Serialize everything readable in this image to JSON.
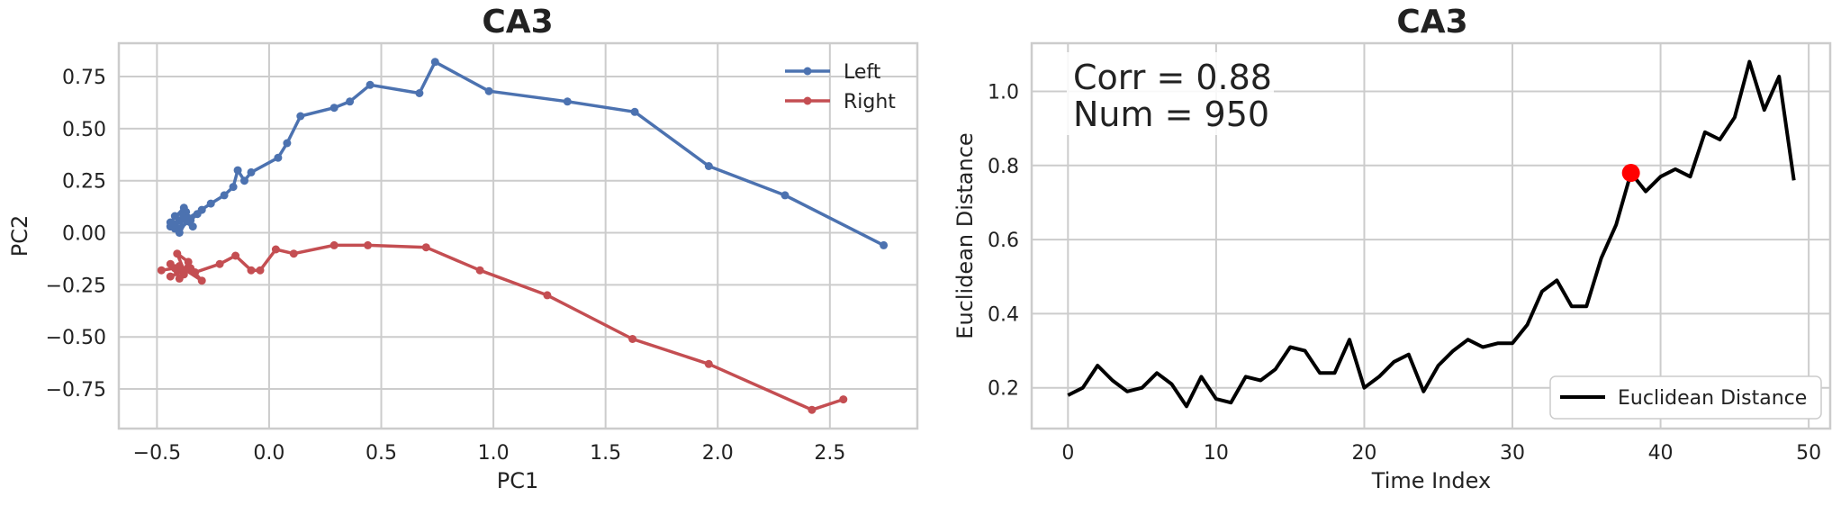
{
  "chart_data": [
    {
      "type": "line",
      "title": "CA3",
      "xlabel": "PC1",
      "ylabel": "PC2",
      "xlim": [
        -0.67,
        2.89
      ],
      "ylim": [
        -0.94,
        0.91
      ],
      "xticks": [
        -0.5,
        0.0,
        0.5,
        1.0,
        1.5,
        2.0,
        2.5
      ],
      "xtick_labels": [
        "−0.5",
        "0.0",
        "0.5",
        "1.0",
        "1.5",
        "2.0",
        "2.5"
      ],
      "yticks": [
        -0.75,
        -0.5,
        -0.25,
        0.0,
        0.25,
        0.5,
        0.75
      ],
      "ytick_labels": [
        "−0.75",
        "−0.50",
        "−0.25",
        "0.00",
        "0.25",
        "0.50",
        "0.75"
      ],
      "grid": true,
      "legend": "top-right",
      "series": [
        {
          "name": "Left",
          "color": "#4c72b0",
          "marker": "circle",
          "x": [
            -0.42,
            -0.4,
            -0.44,
            -0.38,
            -0.42,
            -0.36,
            -0.4,
            -0.44,
            -0.38,
            -0.34,
            -0.42,
            -0.37,
            -0.4,
            -0.35,
            -0.32,
            -0.3,
            -0.36,
            -0.26,
            -0.2,
            -0.16,
            -0.14,
            -0.11,
            -0.08,
            0.04,
            0.08,
            0.14,
            0.29,
            0.36,
            0.45,
            0.67,
            0.74,
            0.98,
            1.33,
            1.63,
            1.96,
            2.3,
            2.74
          ],
          "y": [
            0.02,
            0.06,
            0.03,
            0.08,
            0.04,
            0.07,
            0.0,
            0.05,
            0.12,
            0.03,
            0.08,
            0.1,
            0.02,
            0.06,
            0.09,
            0.11,
            0.07,
            0.14,
            0.18,
            0.22,
            0.3,
            0.25,
            0.29,
            0.36,
            0.43,
            0.56,
            0.6,
            0.63,
            0.71,
            0.67,
            0.82,
            0.68,
            0.63,
            0.58,
            0.32,
            0.18,
            -0.06
          ]
        },
        {
          "name": "Right",
          "color": "#c44e52",
          "marker": "circle",
          "x": [
            -0.48,
            -0.42,
            -0.38,
            -0.44,
            -0.4,
            -0.36,
            -0.41,
            -0.38,
            -0.44,
            -0.35,
            -0.3,
            -0.4,
            -0.33,
            -0.22,
            -0.15,
            -0.08,
            -0.04,
            0.03,
            0.11,
            0.29,
            0.44,
            0.7,
            0.94,
            1.24,
            1.62,
            1.96,
            2.42,
            2.56
          ],
          "y": [
            -0.18,
            -0.17,
            -0.2,
            -0.15,
            -0.22,
            -0.14,
            -0.1,
            -0.18,
            -0.21,
            -0.17,
            -0.23,
            -0.16,
            -0.19,
            -0.15,
            -0.11,
            -0.18,
            -0.18,
            -0.08,
            -0.1,
            -0.06,
            -0.06,
            -0.07,
            -0.18,
            -0.3,
            -0.51,
            -0.63,
            -0.85,
            -0.8
          ]
        }
      ]
    },
    {
      "type": "line",
      "title": "CA3",
      "xlabel": "Time Index",
      "ylabel": "Euclidean Distance",
      "xlim": [
        -2.45,
        51.45
      ],
      "ylim": [
        0.09,
        1.13
      ],
      "xticks": [
        0,
        10,
        20,
        30,
        40,
        50
      ],
      "xtick_labels": [
        "0",
        "10",
        "20",
        "30",
        "40",
        "50"
      ],
      "yticks": [
        0.2,
        0.4,
        0.6,
        0.8,
        1.0
      ],
      "ytick_labels": [
        "0.2",
        "0.4",
        "0.6",
        "0.8",
        "1.0"
      ],
      "grid": true,
      "legend": "lower-right",
      "annotations": [
        "Corr = 0.88",
        "Num = 950"
      ],
      "highlight": {
        "x": 38,
        "y": 0.78,
        "color": "#ff0000"
      },
      "series": [
        {
          "name": "Euclidean Distance",
          "color": "#000000",
          "x": [
            0,
            1,
            2,
            3,
            4,
            5,
            6,
            7,
            8,
            9,
            10,
            11,
            12,
            13,
            14,
            15,
            16,
            17,
            18,
            19,
            20,
            21,
            22,
            23,
            24,
            25,
            26,
            27,
            28,
            29,
            30,
            31,
            32,
            33,
            34,
            35,
            36,
            37,
            38,
            39,
            40,
            41,
            42,
            43,
            44,
            45,
            46,
            47,
            48,
            49
          ],
          "y": [
            0.18,
            0.2,
            0.26,
            0.22,
            0.19,
            0.2,
            0.24,
            0.21,
            0.15,
            0.23,
            0.17,
            0.16,
            0.23,
            0.22,
            0.25,
            0.31,
            0.3,
            0.24,
            0.24,
            0.33,
            0.2,
            0.23,
            0.27,
            0.29,
            0.19,
            0.26,
            0.3,
            0.33,
            0.31,
            0.32,
            0.32,
            0.37,
            0.46,
            0.49,
            0.42,
            0.42,
            0.55,
            0.64,
            0.78,
            0.73,
            0.77,
            0.79,
            0.77,
            0.89,
            0.87,
            0.93,
            1.08,
            0.95,
            1.04,
            0.76
          ]
        }
      ]
    }
  ]
}
